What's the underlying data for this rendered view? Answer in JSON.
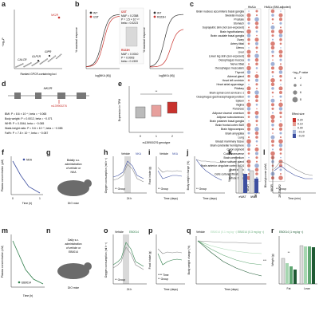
{
  "colors": {
    "grey": "#888888",
    "red": "#c8322d",
    "blue": "#3d4fa0",
    "green": "#2e7d4a",
    "lightgreen": "#7fbf8e",
    "shade": "#d9d9d9"
  },
  "panels": {
    "a": {
      "label": "a",
      "ylabel": "−log₁₀P",
      "xlabel": "Ranked GPCR-containing loci",
      "genes": [
        "NK2R",
        "CALCR",
        "GLP1R",
        "GIPR"
      ]
    },
    "b": {
      "label": "b",
      "ylabel": "% Emax",
      "xlabel": "log[NKA (M)]",
      "legend": [
        "WT",
        "I23T",
        "R323H"
      ],
      "i23t": {
        "name": "I23T",
        "maf": "MAF = 0.2358",
        "p": "P = 1.5 × 10⁻¹⁵",
        "beta": "beta = 0.0223"
      },
      "r323h": {
        "name": "R323H",
        "maf": "MAF = 0.0010",
        "p": "P = 0.0003",
        "beta": "beta = 0.1300"
      },
      "ylabel_left": "% maximal response",
      "ylabel_right": "% maximal response",
      "legend_left": [
        "WT",
        "I23T"
      ],
      "legend_right": [
        "WT",
        "R323H"
      ]
    },
    "c": {
      "label": "c",
      "col_headers": [
        "HbA1c",
        "HbA1c (BMI-adjusted)"
      ],
      "col_sub": [
        "NK2R",
        "NK2R-TACR2",
        "NK2R",
        "NK2R-TACR2"
      ],
      "rows": [
        "Brain nucleus accumbens basal ganglia",
        "Skeletal muscle",
        "Prostate",
        "Stomach",
        "Suprapubic skin (not sun-exposed)",
        "Brain hypothalamus",
        "Brain caudate basal ganglia",
        "Ovary",
        "Artery tibial",
        "Uterus",
        "Liver",
        "Lower leg skin (sun-exposed)",
        "Oesophagus mucosa",
        "Nerve tibial",
        "Oesophagus muscularis",
        "Thyroid",
        "Adrenal gland",
        "Heart left ventricle",
        "Heart atrial appendage",
        "Pituitary",
        "Brain spinal cord cervical c-1",
        "Oesophagus gastroesophageal junction",
        "Spleen",
        "Vagina",
        "Pancreas",
        "Adipose visceral omentum",
        "Adipose subcutaneous",
        "Brain putamen basal ganglia",
        "Brain frontal cortex BA9",
        "Brain hippocampus",
        "Brain amygdala",
        "Lung",
        "Breast mammary tissue",
        "Brain cerebellar hemisphere",
        "Colon sigmoid",
        "Colon transverse",
        "Brain cerebellum",
        "Minor salivary gland",
        "Brain anterior cingulate cortex BA24",
        "Brain cortex",
        "Cells cultured fibroblasts",
        "Whole blood"
      ],
      "legend_title1": "−log₁₀P value",
      "legend_vals1": [
        "2",
        "4",
        "6",
        "8"
      ],
      "legend_title2": "Effect size",
      "legend_vals2": [
        "0.20",
        "0.10",
        "0.00",
        "−0.10",
        "−0.20"
      ]
    },
    "d": {
      "label": "d",
      "gene": "NK2R",
      "snp": "rs139900276",
      "stats": [
        "BMI: P = 8.6 × 10⁻⁶, beta = −0.065",
        "Body weight: P = 0.0012, beta = −0.071",
        "WHR: P = 0.0044, beta = −0.065",
        "Waist-height ratio: P = 5.6 × 10⁻⁵, beta = −0.085",
        "Fat%: P = 7.8 × 10⁻⁴, beta = −0.087"
      ]
    },
    "e": {
      "label": "e",
      "ylabel": "Expression in TPM",
      "xlabel": "rs139900276 genotype",
      "groups": [
        "0",
        "1",
        "2"
      ],
      "sig": "**"
    },
    "f": {
      "label": "f",
      "ylabel": "Plasma concentration (μM)",
      "xlabel": "Time (h)",
      "legend": "NKA",
      "xticks": [
        "0",
        "1"
      ]
    },
    "g": {
      "label": "g",
      "text1": "Bidaily s.c.",
      "text2": "administration",
      "text3": "of vehicle or",
      "text4": "NKA",
      "mouse": "DIO mice"
    },
    "h": {
      "label": "h",
      "ylabel": "Oxygen consumption (ml h⁻¹)",
      "xlabel": "24 h",
      "legend": [
        "Vehicle",
        "NKA"
      ],
      "sig": "** Group"
    },
    "i": {
      "label": "i",
      "ylabel": "Food intake (g)",
      "xlabel": "Time (days)",
      "legend": [
        "Vehicle",
        "NKA"
      ],
      "sig": "** Group"
    },
    "j": {
      "label": "j",
      "ylabel": "Body weight change (%)",
      "xlabel": "Time (days)",
      "sig": "** Group"
    },
    "k": {
      "label": "k",
      "ylabel": "Weight (g)",
      "xlabel": [
        "eWAT",
        "iWAT"
      ],
      "sig": "*"
    },
    "l": {
      "label": "l",
      "ylabel": "Blood glucose (mM)",
      "xlabel": "Time (min)",
      "sig": "** Group"
    },
    "m": {
      "label": "m",
      "ylabel": "Plasma concentration (nM)",
      "xlabel": "Time (h)",
      "legend": "EB0014"
    },
    "n": {
      "label": "n",
      "text1": "Daily s.c.",
      "text2": "administration",
      "text3": "of vehicle or",
      "text4": "EB0014",
      "mouse": "DIO mice"
    },
    "o": {
      "label": "o",
      "ylabel": "Oxygen consumption (ml h⁻¹)",
      "xlabel": "24 h",
      "legend": [
        "Vehicle",
        "EB0014"
      ],
      "sig": "** Group"
    },
    "p": {
      "label": "p",
      "ylabel": "Food intake (g)",
      "xlabel": "Time (days)",
      "sig1": "**** Time",
      "sig2": "** Group"
    },
    "q": {
      "label": "q",
      "ylabel": "Body weight change (%)",
      "xlabel": "Time (days)",
      "legend": [
        "Vehicle",
        "EB0014 (0.1 mg kg⁻¹)",
        "EB0014 (0.3 mg kg⁻¹)",
        "EB0014 (1 mg kg⁻¹)"
      ],
      "sig": "***"
    },
    "r": {
      "label": "r",
      "ylabel": "Weight (g)",
      "xlabel": [
        "Fat",
        "Lean"
      ],
      "sig": "**"
    }
  }
}
